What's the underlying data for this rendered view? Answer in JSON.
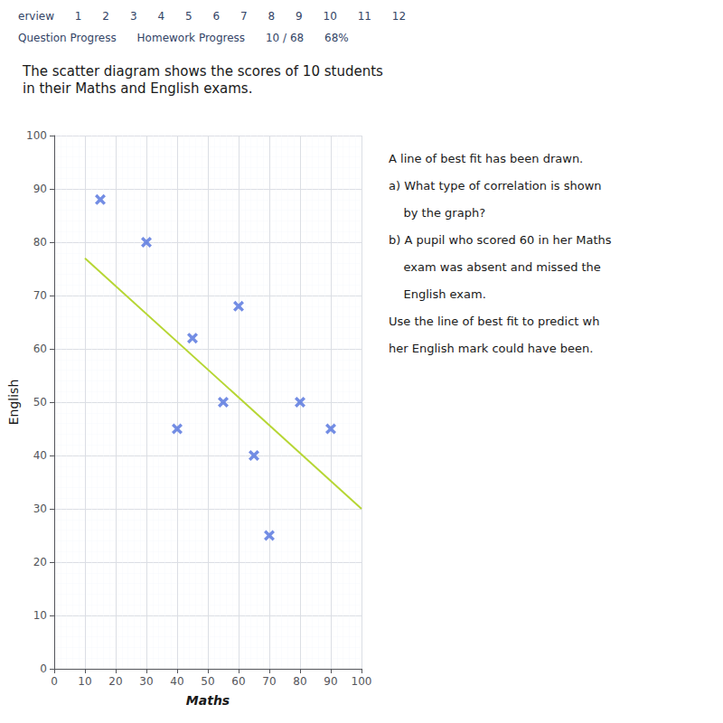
{
  "chart_data": {
    "type": "scatter",
    "title": "The scatter diagram shows the scores of 10 students",
    "subtitle": "in their Maths and English exams.",
    "xlabel": "Maths",
    "ylabel": "English",
    "xlim": [
      0,
      100
    ],
    "ylim": [
      0,
      100
    ],
    "xticks": [
      0,
      10,
      20,
      30,
      40,
      50,
      60,
      70,
      80,
      90,
      100
    ],
    "yticks": [
      0,
      10,
      20,
      30,
      40,
      50,
      60,
      70,
      80,
      90,
      100
    ],
    "grid": true,
    "series": [
      {
        "type": "scatter",
        "marker": "x",
        "x": [
          15,
          30,
          40,
          45,
          55,
          60,
          65,
          70,
          80,
          90
        ],
        "values": [
          88,
          80,
          45,
          62,
          50,
          68,
          40,
          25,
          50,
          45
        ]
      },
      {
        "type": "line",
        "line_style": "solid",
        "x": [
          10,
          100
        ],
        "values": [
          77,
          30
        ]
      }
    ],
    "annotations": [
      [
        "erview",
        "1",
        "2",
        "3",
        "4",
        "5",
        "6",
        "7",
        "8",
        "9",
        "10",
        "11",
        "12"
      ],
      [
        "Question Progress",
        "Homework Progress",
        "10 / 68",
        "68%"
      ],
      [
        "A line of best fit has been drawn.",
        "a) What type of correlation is shown",
        "    by the graph?",
        "b) A pupil who scored 60 in her Maths",
        "    exam was absent and missed the",
        "    English exam.",
        "Use the line of best fit to predict wh",
        "her English mark could have been."
      ]
    ]
  }
}
